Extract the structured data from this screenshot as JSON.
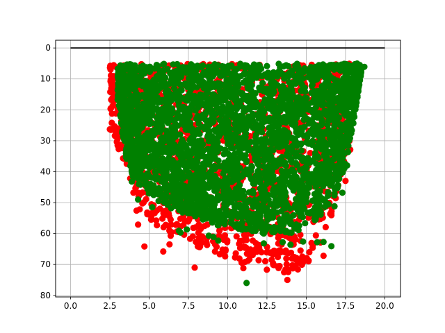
{
  "chart_data": {
    "type": "scatter",
    "title": "",
    "xlabel": "",
    "ylabel": "",
    "xlim": [
      -0.95,
      21.0
    ],
    "ylim": [
      80.5,
      -2.5
    ],
    "y_inverted": true,
    "grid": true,
    "x_ticks": [
      "0.0",
      "2.5",
      "5.0",
      "7.5",
      "10.0",
      "12.5",
      "15.0",
      "17.5",
      "20.0"
    ],
    "y_ticks": [
      "0",
      "10",
      "20",
      "30",
      "40",
      "50",
      "60",
      "70",
      "80"
    ],
    "colors": {
      "line": "#000000",
      "red": "#ff0000",
      "green": "#008000",
      "grid": "#b0b0b0"
    },
    "series": [
      {
        "kind": "line",
        "color": "#000000",
        "x": [
          0,
          20
        ],
        "y": [
          0,
          0
        ]
      },
      {
        "kind": "scatter",
        "color": "#ff0000",
        "description": "red points, mostly hidden behind the green cloud; outliers visible",
        "envelope": {
          "top": 5,
          "x": [
            2.5,
            3.0,
            4.0,
            5.0,
            6.0,
            7.0,
            8.0,
            9.0,
            10.0,
            11.0,
            12.0,
            13.0,
            14.0,
            15.0,
            16.0,
            17.0,
            17.8
          ],
          "bottom": [
            26,
            33,
            45,
            55,
            60,
            62,
            64,
            66,
            68,
            70,
            71,
            73,
            74,
            70,
            64,
            48,
            30
          ]
        },
        "outliers": [
          {
            "x": 2.5,
            "y": 26.3
          },
          {
            "x": 3.1,
            "y": 26.0
          },
          {
            "x": 3.2,
            "y": 13.7
          },
          {
            "x": 3.9,
            "y": 37.5
          },
          {
            "x": 4.0,
            "y": 46.8
          },
          {
            "x": 4.2,
            "y": 52.6
          },
          {
            "x": 4.4,
            "y": 52.2
          },
          {
            "x": 4.3,
            "y": 57.1
          },
          {
            "x": 4.7,
            "y": 64.2
          },
          {
            "x": 5.5,
            "y": 57.3
          },
          {
            "x": 5.9,
            "y": 65.8
          },
          {
            "x": 6.3,
            "y": 63.5
          },
          {
            "x": 6.4,
            "y": 57.1
          },
          {
            "x": 7.0,
            "y": 57.7
          },
          {
            "x": 7.3,
            "y": 52.0
          },
          {
            "x": 7.9,
            "y": 71.0
          },
          {
            "x": 8.3,
            "y": 62.4
          },
          {
            "x": 9.2,
            "y": 63.5
          },
          {
            "x": 9.5,
            "y": 66.7
          },
          {
            "x": 10.5,
            "y": 67.6
          },
          {
            "x": 10.8,
            "y": 64.7
          },
          {
            "x": 11.1,
            "y": 69.2
          },
          {
            "x": 11.0,
            "y": 71.2
          },
          {
            "x": 11.2,
            "y": 62.1
          },
          {
            "x": 11.6,
            "y": 62.3
          },
          {
            "x": 11.8,
            "y": 65.0
          },
          {
            "x": 12.0,
            "y": 64.5
          },
          {
            "x": 12.7,
            "y": 66.2
          },
          {
            "x": 12.8,
            "y": 68.5
          },
          {
            "x": 13.2,
            "y": 70.6
          },
          {
            "x": 13.7,
            "y": 65.5
          },
          {
            "x": 13.8,
            "y": 75.0
          },
          {
            "x": 14.2,
            "y": 63.5
          },
          {
            "x": 16.1,
            "y": 67.2
          },
          {
            "x": 17.5,
            "y": 43.0
          },
          {
            "x": 17.8,
            "y": 32.9
          }
        ]
      },
      {
        "kind": "scatter",
        "color": "#008000",
        "description": "dense green cloud drawn on top",
        "envelope": {
          "top": 5,
          "x": [
            3.0,
            3.5,
            4.0,
            4.5,
            5.0,
            6.0,
            7.0,
            8.0,
            9.0,
            10.0,
            11.0,
            12.0,
            13.0,
            14.0,
            15.0,
            16.0,
            17.0,
            17.5,
            18.0,
            18.5
          ],
          "bottom": [
            17,
            35,
            42,
            45,
            48,
            51,
            53,
            55,
            57,
            58,
            59,
            60,
            60,
            60,
            58,
            54,
            46,
            38,
            25,
            8
          ]
        },
        "outliers": [
          {
            "x": 3.0,
            "y": 16.7
          },
          {
            "x": 3.9,
            "y": 43.2
          },
          {
            "x": 4.3,
            "y": 49.0
          },
          {
            "x": 5.2,
            "y": 51.5
          },
          {
            "x": 6.4,
            "y": 51.8
          },
          {
            "x": 6.9,
            "y": 59.1
          },
          {
            "x": 7.0,
            "y": 59.7
          },
          {
            "x": 7.4,
            "y": 58.7
          },
          {
            "x": 8.8,
            "y": 60.7
          },
          {
            "x": 9.1,
            "y": 61.1
          },
          {
            "x": 9.4,
            "y": 62.3
          },
          {
            "x": 11.2,
            "y": 76.0
          },
          {
            "x": 12.3,
            "y": 63.2
          },
          {
            "x": 13.5,
            "y": 62.8
          },
          {
            "x": 14.0,
            "y": 63.6
          },
          {
            "x": 14.8,
            "y": 62.6
          },
          {
            "x": 15.7,
            "y": 62.8
          },
          {
            "x": 16.1,
            "y": 62.7
          },
          {
            "x": 16.6,
            "y": 64.1
          },
          {
            "x": 16.8,
            "y": 51.2
          },
          {
            "x": 17.3,
            "y": 46.8
          },
          {
            "x": 17.6,
            "y": 38.0
          },
          {
            "x": 18.7,
            "y": 6.1
          }
        ]
      }
    ]
  }
}
